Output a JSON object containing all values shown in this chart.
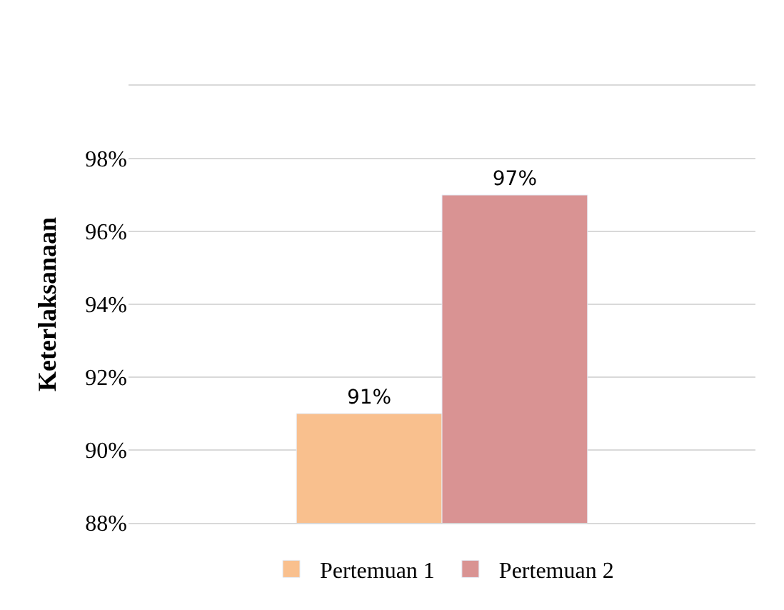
{
  "chart_data": {
    "type": "bar",
    "ylabel": "Keterlaksanaan",
    "categories": [
      null
    ],
    "series": [
      {
        "name": "Pertemuan 1",
        "color": "#f9c08e",
        "values": [
          91
        ],
        "value_labels": [
          "91%"
        ]
      },
      {
        "name": "Pertemuan 2",
        "color": "#d99393",
        "values": [
          97
        ],
        "value_labels": [
          "97%"
        ]
      }
    ],
    "ylim": [
      88,
      100
    ],
    "yticks": [
      {
        "value": 88,
        "label": "88%"
      },
      {
        "value": 90,
        "label": "90%"
      },
      {
        "value": 92,
        "label": "92%"
      },
      {
        "value": 94,
        "label": "94%"
      },
      {
        "value": 96,
        "label": "96%"
      },
      {
        "value": 98,
        "label": "98%"
      },
      {
        "value": 100,
        "label": null
      }
    ],
    "grid": "y",
    "legend": "bottom",
    "tick_labels": "y"
  }
}
